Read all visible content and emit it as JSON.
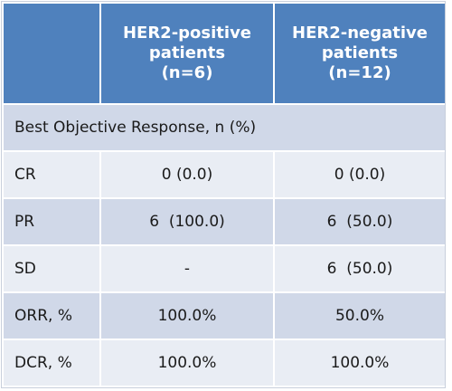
{
  "table": {
    "headers": [
      "",
      [
        "HER2-positive",
        "patients",
        "(n=6)"
      ],
      [
        "HER2-negative",
        "patients",
        "(n=12)"
      ]
    ],
    "section_title": "Best Objective Response, n (%)",
    "rows": [
      {
        "label": "CR",
        "pos": "0 (0.0)",
        "neg": "0 (0.0)"
      },
      {
        "label": "PR",
        "pos": "6  (100.0)",
        "neg": "6  (50.0)"
      },
      {
        "label": "SD",
        "pos": "-",
        "neg": "6  (50.0)"
      },
      {
        "label": "ORR, %",
        "pos": "100.0%",
        "neg": "50.0%"
      },
      {
        "label": "DCR, %",
        "pos": "100.0%",
        "neg": "100.0%"
      }
    ],
    "colors": {
      "header_bg": "#4f81bd",
      "row_dark": "#d0d8e8",
      "row_light": "#e9edf4"
    }
  }
}
